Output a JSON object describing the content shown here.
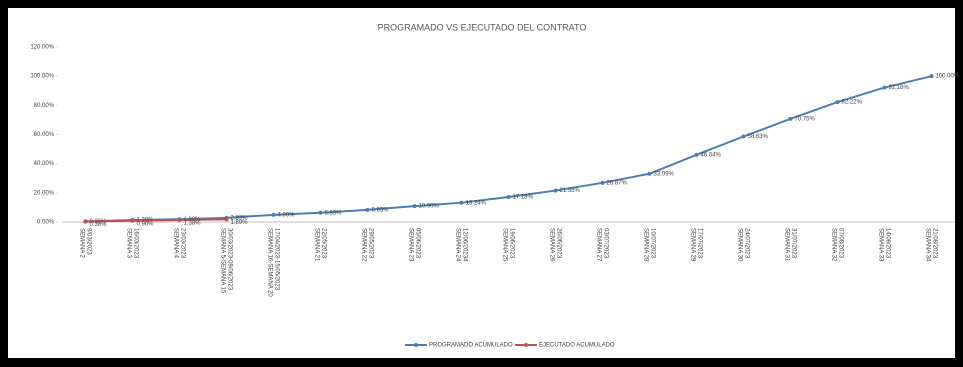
{
  "chart_data": {
    "type": "line",
    "title": "PROGRAMADO VS EJECUTADO DEL CONTRATO",
    "categories": [
      [
        "SEMANA 2",
        "9/03/2023"
      ],
      [
        "SEMANA 3",
        "16/03/2023"
      ],
      [
        "SEMANA 4",
        "23/03/2023"
      ],
      [
        "SEMANA 5-SEMANA 15",
        "30/03/2023-08/06/2023"
      ],
      [
        "SEMANA 16-SEMANA 20",
        "17/04/2023-15/05/2023"
      ],
      [
        "SEMANA 21",
        "22/05/2023"
      ],
      [
        "SEMANA 22",
        "29/05/2023"
      ],
      [
        "SEMANA 23",
        "05/06/2023"
      ],
      [
        "SEMANA 24",
        "12/06/20234"
      ],
      [
        "SEMANA 25",
        "19/06/2023"
      ],
      [
        "SEMANA 26",
        "26/06/2023"
      ],
      [
        "SEMANA 27",
        "03/07/2023"
      ],
      [
        "SEMANA 28",
        "10/07/2023"
      ],
      [
        "SEMANA 29",
        "17/07/2023"
      ],
      [
        "SEMANA 30",
        "24/07/2023"
      ],
      [
        "SEMANA 31",
        "31/07/2023"
      ],
      [
        "SEMANA 32",
        "07/08/2023"
      ],
      [
        "SEMANA 33",
        "14/08/2023"
      ],
      [
        "SEMANA 34",
        "21/08/2023"
      ]
    ],
    "series": [
      {
        "name": "PROGRAMADO ACUMULADO",
        "color": "#4a7ebb",
        "values": [
          0.36,
          1.38,
          1.88,
          2.83,
          4.9,
          6.33,
          8.35,
          10.9,
          13.24,
          17.18,
          21.55,
          26.87,
          33.09,
          46.04,
          58.63,
          70.75,
          82.22,
          92.18,
          100.0
        ],
        "value_labels": [
          "0.36%",
          "1.38%",
          "1.88%",
          "2.83%",
          "4.90%",
          "6.33%",
          "8.35%",
          "10.90%",
          "13.24%",
          "17.18%",
          "21.55%",
          "26.87%",
          "33.09%",
          "46.04%",
          "58.63%",
          "70.75%",
          "82.22%",
          "92.18%",
          "100.00%"
        ]
      },
      {
        "name": "EJECUTADO ACUMULADO",
        "color": "#c0504d",
        "values": [
          0.36,
          0.9,
          1.38,
          1.89,
          null,
          null,
          null,
          null,
          null,
          null,
          null,
          null,
          null,
          null,
          null,
          null,
          null,
          null,
          null
        ],
        "value_labels": [
          "0.36%",
          "0.90%",
          "1.38%",
          "1.89%",
          null,
          null,
          null,
          null,
          null,
          null,
          null,
          null,
          null,
          null,
          null,
          null,
          null,
          null,
          null
        ]
      }
    ],
    "ylim": [
      0,
      120
    ],
    "yticks": [
      {
        "value": 0,
        "label": "0.00%"
      },
      {
        "value": 20,
        "label": "20.00%"
      },
      {
        "value": 40,
        "label": "40.00%"
      },
      {
        "value": 60,
        "label": "60.00%"
      },
      {
        "value": 80,
        "label": "80.00%"
      },
      {
        "value": 100,
        "label": "100.00%"
      },
      {
        "value": 120,
        "label": "120.00%"
      }
    ],
    "grid": false,
    "legend": "bottom"
  }
}
